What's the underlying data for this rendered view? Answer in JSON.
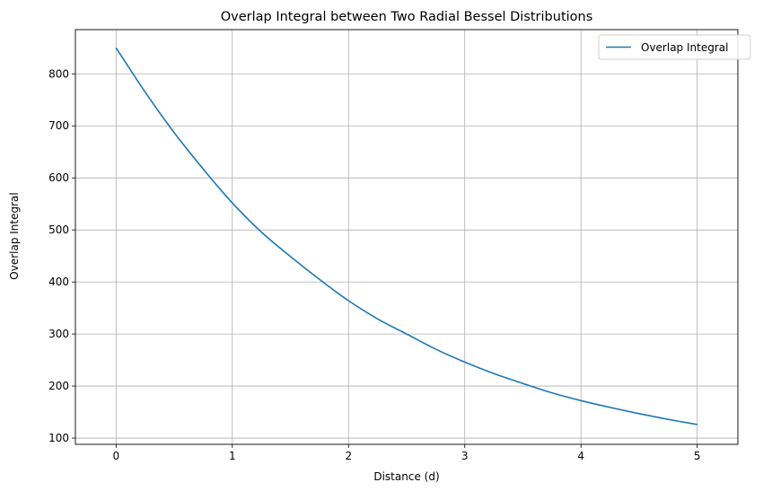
{
  "chart_data": {
    "type": "line",
    "title": "Overlap Integral between Two Radial Bessel Distributions",
    "xlabel": "Distance (d)",
    "ylabel": "Overlap Integral",
    "xlim": [
      -0.35,
      5.35
    ],
    "ylim": [
      88,
      885
    ],
    "x_ticks": [
      0,
      1,
      2,
      3,
      4,
      5
    ],
    "y_ticks": [
      100,
      200,
      300,
      400,
      500,
      600,
      700,
      800
    ],
    "grid": true,
    "legend_position": "top-right",
    "series": [
      {
        "name": "Overlap Integral",
        "color": "#1f77b4",
        "x": [
          0,
          0.25,
          0.5,
          0.75,
          1.0,
          1.25,
          1.5,
          1.75,
          2.0,
          2.25,
          2.5,
          2.75,
          3.0,
          3.25,
          3.5,
          3.75,
          4.0,
          4.25,
          4.5,
          4.75,
          5.0
        ],
        "y": [
          850,
          765,
          687,
          617,
          552,
          496,
          449,
          405,
          364,
          329,
          300,
          271,
          246,
          224,
          205,
          187,
          172,
          159,
          147,
          136,
          126
        ]
      }
    ]
  },
  "colors": {
    "line": "#1f77b4",
    "grid": "#b0b0b0",
    "axes": "#000000",
    "background": "#ffffff"
  }
}
